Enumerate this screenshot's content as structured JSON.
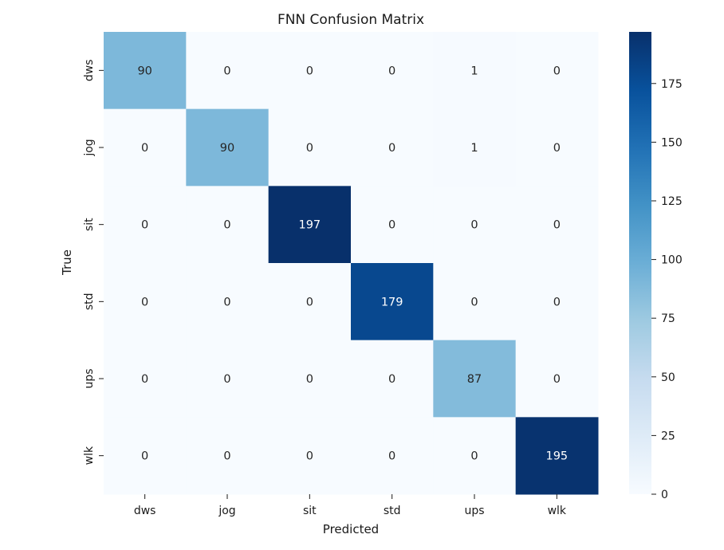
{
  "chart_data": {
    "type": "heatmap",
    "title": "FNN Confusion Matrix",
    "xlabel": "Predicted",
    "ylabel": "True",
    "x_categories": [
      "dws",
      "jog",
      "sit",
      "std",
      "ups",
      "wlk"
    ],
    "y_categories": [
      "dws",
      "jog",
      "sit",
      "std",
      "ups",
      "wlk"
    ],
    "values": [
      [
        90,
        0,
        0,
        0,
        1,
        0
      ],
      [
        0,
        90,
        0,
        0,
        1,
        0
      ],
      [
        0,
        0,
        197,
        0,
        0,
        0
      ],
      [
        0,
        0,
        0,
        179,
        0,
        0
      ],
      [
        0,
        0,
        0,
        0,
        87,
        0
      ],
      [
        0,
        0,
        0,
        0,
        0,
        195
      ]
    ],
    "colormap": "Blues",
    "colorbar": {
      "range": [
        0,
        197
      ],
      "ticks": [
        0,
        25,
        50,
        75,
        100,
        125,
        150,
        175
      ]
    },
    "annotations": true
  }
}
